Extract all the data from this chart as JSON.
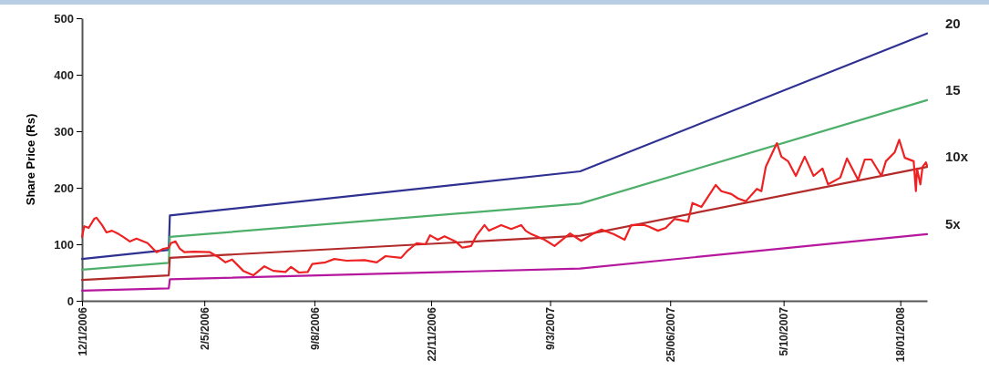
{
  "chart_data": {
    "type": "line",
    "ylabel": "Share Price (Rs)",
    "ylim": [
      0,
      500
    ],
    "yticks": [
      0,
      100,
      200,
      300,
      400,
      500
    ],
    "xlim": [
      "2006-01-12",
      "2008-02-11"
    ],
    "xticks": [
      {
        "value": "2006-01-12",
        "label": "12/1/2006"
      },
      {
        "value": "2006-05-02",
        "label": "2/5/2006"
      },
      {
        "value": "2006-08-09",
        "label": "9/8/2006"
      },
      {
        "value": "2006-11-22",
        "label": "22/11/2006"
      },
      {
        "value": "2007-03-09",
        "label": "9/3/2007"
      },
      {
        "value": "2007-06-25",
        "label": "25/06/2007"
      },
      {
        "value": "2007-10-05",
        "label": "5/10/2007"
      },
      {
        "value": "2008-01-18",
        "label": "18/01/2008"
      }
    ],
    "grid": false,
    "legend": false,
    "marker": "none",
    "line_style": "solid",
    "series": [
      {
        "name": "20",
        "color": "#2e3192",
        "x": [
          "2006-01-12",
          "2006-03-31",
          "2006-04-01",
          "2007-04-05",
          "2008-02-11"
        ],
        "values": [
          74,
          90,
          151,
          229,
          473
        ]
      },
      {
        "name": "15",
        "color": "#4daf6a",
        "x": [
          "2006-01-12",
          "2006-03-31",
          "2006-04-01",
          "2007-04-05",
          "2008-02-11"
        ],
        "values": [
          55,
          67,
          113,
          172,
          355
        ]
      },
      {
        "name": "10x",
        "color": "#b22a2a",
        "x": [
          "2006-01-12",
          "2006-03-31",
          "2006-04-01",
          "2007-04-05",
          "2008-02-11"
        ],
        "values": [
          37,
          45,
          76,
          115,
          237
        ]
      },
      {
        "name": "5x",
        "color": "#b5179e",
        "x": [
          "2006-01-12",
          "2006-03-31",
          "2006-04-01",
          "2007-04-05",
          "2008-02-11"
        ],
        "values": [
          18,
          22,
          38,
          57,
          118
        ]
      },
      {
        "color": "#ee2222",
        "x": [
          "2006-01-12",
          "2006-01-14",
          "2006-01-18",
          "2006-01-23",
          "2006-01-25",
          "2006-01-30",
          "2006-02-03",
          "2006-02-08",
          "2006-02-14",
          "2006-02-18",
          "2006-02-24",
          "2006-03-02",
          "2006-03-12",
          "2006-03-20",
          "2006-03-26",
          "2006-03-31",
          "2006-04-02",
          "2006-04-06",
          "2006-04-10",
          "2006-04-14",
          "2006-04-23",
          "2006-05-07",
          "2006-05-15",
          "2006-05-21",
          "2006-05-27",
          "2006-06-06",
          "2006-06-15",
          "2006-06-25",
          "2006-07-03",
          "2006-07-14",
          "2006-07-19",
          "2006-07-26",
          "2006-08-03",
          "2006-08-07",
          "2006-08-19",
          "2006-08-27",
          "2006-09-07",
          "2006-09-23",
          "2006-10-04",
          "2006-10-12",
          "2006-10-26",
          "2006-11-01",
          "2006-11-09",
          "2006-11-17",
          "2006-11-21",
          "2006-11-28",
          "2006-12-04",
          "2006-12-14",
          "2006-12-20",
          "2006-12-28",
          "2007-01-02",
          "2007-01-09",
          "2007-01-13",
          "2007-01-24",
          "2007-02-02",
          "2007-02-11",
          "2007-02-15",
          "2007-02-20",
          "2007-03-04",
          "2007-03-13",
          "2007-03-21",
          "2007-03-27",
          "2007-04-06",
          "2007-04-16",
          "2007-04-24",
          "2007-05-05",
          "2007-05-15",
          "2007-05-21",
          "2007-06-02",
          "2007-06-06",
          "2007-06-14",
          "2007-06-21",
          "2007-06-29",
          "2007-07-11",
          "2007-07-15",
          "2007-07-23",
          "2007-08-05",
          "2007-08-10",
          "2007-08-19",
          "2007-08-25",
          "2007-09-01",
          "2007-09-11",
          "2007-09-15",
          "2007-09-19",
          "2007-09-29",
          "2007-10-03",
          "2007-10-09",
          "2007-10-16",
          "2007-10-24",
          "2007-11-01",
          "2007-11-09",
          "2007-11-14",
          "2007-11-25",
          "2007-12-01",
          "2007-12-11",
          "2007-12-17",
          "2007-12-23",
          "2008-01-01",
          "2008-01-05",
          "2008-01-13",
          "2008-01-17",
          "2008-01-22",
          "2008-01-30",
          "2008-02-01",
          "2008-02-02",
          "2008-02-05",
          "2008-02-07",
          "2008-02-10",
          "2008-02-11"
        ],
        "values": [
          113,
          132,
          129,
          145,
          147,
          134,
          121,
          124,
          118,
          113,
          105,
          110,
          102,
          86,
          92,
          94,
          102,
          105,
          92,
          86,
          87,
          86,
          77,
          68,
          73,
          53,
          45,
          61,
          53,
          51,
          60,
          50,
          51,
          65,
          68,
          74,
          71,
          72,
          68,
          79,
          76,
          89,
          102,
          100,
          116,
          108,
          114,
          105,
          94,
          97,
          116,
          134,
          124,
          134,
          127,
          134,
          124,
          118,
          108,
          97,
          110,
          119,
          106,
          118,
          126,
          118,
          108,
          134,
          134,
          131,
          124,
          129,
          145,
          140,
          173,
          166,
          205,
          194,
          189,
          181,
          176,
          198,
          194,
          237,
          279,
          255,
          247,
          221,
          255,
          221,
          234,
          206,
          218,
          252,
          214,
          250,
          250,
          221,
          247,
          263,
          285,
          253,
          247,
          194,
          234,
          206,
          237,
          245,
          239
        ]
      }
    ]
  }
}
